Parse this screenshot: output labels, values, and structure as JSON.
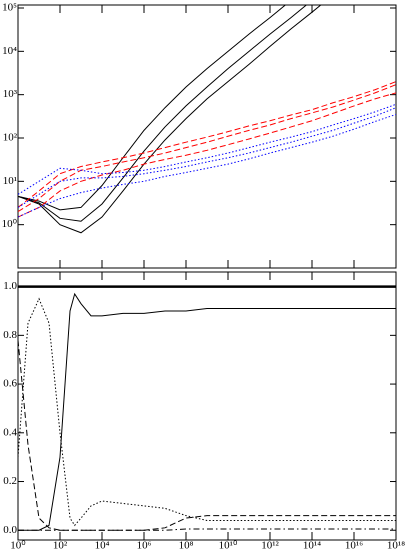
{
  "chart_data": [
    {
      "type": "line",
      "xscale": "log",
      "yscale": "log",
      "x": [
        1,
        10,
        100,
        1000,
        10000,
        100000,
        1000000,
        10000000,
        100000000,
        1000000000,
        10000000000,
        100000000000,
        1000000000000,
        10000000000000,
        100000000000000,
        1000000000000000,
        10000000000000000,
        100000000000000000,
        1000000000000000000
      ],
      "xlim": [
        1,
        1000000000000000000
      ],
      "ylim": [
        0.1,
        100000
      ],
      "yticks": [
        {
          "value": 1,
          "label": "10⁰"
        },
        {
          "value": 10,
          "label": "10¹"
        },
        {
          "value": 100,
          "label": "10²"
        },
        {
          "value": 1000,
          "label": "10³"
        },
        {
          "value": 10000,
          "label": "10⁴"
        },
        {
          "value": 100000,
          "label": "10⁵"
        }
      ],
      "series": [
        {
          "color": "#000000",
          "dash": "solid",
          "values": [
            4.5,
            3.5,
            2.2,
            2.5,
            8,
            35,
            150,
            500,
            1500,
            4000,
            10000,
            25000,
            60000,
            150000,
            null,
            null,
            null,
            null,
            null
          ]
        },
        {
          "color": "#000000",
          "dash": "solid",
          "values": [
            4.5,
            3.2,
            1.4,
            1.2,
            3,
            12,
            50,
            180,
            550,
            1500,
            4000,
            10000,
            25000,
            60000,
            150000,
            null,
            null,
            null,
            null
          ]
        },
        {
          "color": "#000000",
          "dash": "solid",
          "values": [
            4.5,
            3,
            1,
            0.65,
            1.5,
            6,
            25,
            90,
            280,
            800,
            2000,
            5000,
            13000,
            33000,
            80000,
            200000,
            null,
            null,
            null
          ]
        },
        {
          "color": "#ff0000",
          "dash": "dashed",
          "values": [
            2.5,
            6,
            15,
            22,
            28,
            35,
            45,
            60,
            80,
            105,
            140,
            190,
            250,
            340,
            450,
            650,
            900,
            1300,
            2000
          ]
        },
        {
          "color": "#ff0000",
          "dash": "dashed",
          "values": [
            2,
            4,
            10,
            18,
            22,
            28,
            35,
            45,
            60,
            80,
            110,
            150,
            200,
            280,
            380,
            520,
            750,
            1100,
            1700
          ]
        },
        {
          "color": "#ff0000",
          "dash": "dashed",
          "values": [
            1.5,
            2.5,
            6,
            10,
            14,
            18,
            25,
            32,
            40,
            52,
            70,
            95,
            130,
            180,
            250,
            370,
            550,
            800,
            1100
          ]
        },
        {
          "color": "#0000ff",
          "dash": "dotted",
          "values": [
            5,
            10,
            20,
            18,
            15,
            16,
            18,
            22,
            28,
            35,
            45,
            60,
            80,
            105,
            140,
            200,
            280,
            400,
            600
          ]
        },
        {
          "color": "#0000ff",
          "dash": "dotted",
          "values": [
            2.5,
            5,
            10,
            12,
            12,
            13,
            15,
            18,
            22,
            28,
            35,
            45,
            60,
            80,
            110,
            150,
            220,
            320,
            500
          ]
        },
        {
          "color": "#0000ff",
          "dash": "dotted",
          "values": [
            1.5,
            2.5,
            4,
            5.5,
            7,
            8.5,
            10,
            13,
            16,
            20,
            25,
            33,
            45,
            60,
            80,
            110,
            160,
            240,
            350
          ]
        }
      ]
    },
    {
      "type": "line",
      "xscale": "log",
      "yscale": "linear",
      "x": [
        1,
        3,
        10,
        30,
        100,
        300,
        500,
        1000,
        3000,
        10000,
        100000,
        1000000,
        10000000,
        100000000,
        1000000000,
        10000000000,
        1000000000000,
        100000000000000,
        10000000000000000,
        1000000000000000000
      ],
      "xlim": [
        1,
        1000000000000000000
      ],
      "ylim": [
        -0.04,
        1.06
      ],
      "xticks": [
        {
          "value": 1,
          "label": "10⁰"
        },
        {
          "value": 100,
          "label": "10²"
        },
        {
          "value": 10000,
          "label": "10⁴"
        },
        {
          "value": 1000000,
          "label": "10⁶"
        },
        {
          "value": 100000000,
          "label": "10⁸"
        },
        {
          "value": 10000000000,
          "label": "10¹⁰"
        },
        {
          "value": 1000000000000,
          "label": "10¹²"
        },
        {
          "value": 100000000000000,
          "label": "10¹⁴"
        },
        {
          "value": 10000000000000000,
          "label": "10¹⁶"
        },
        {
          "value": 1000000000000000000,
          "label": "10¹⁸"
        }
      ],
      "yticks": [
        {
          "value": 0,
          "label": "0.0"
        },
        {
          "value": 0.2,
          "label": "0.2"
        },
        {
          "value": 0.4,
          "label": "0.4"
        },
        {
          "value": 0.6,
          "label": "0.6"
        },
        {
          "value": 0.8,
          "label": "0.8"
        },
        {
          "value": 1,
          "label": "1.0"
        }
      ],
      "series": [
        {
          "color": "#000000",
          "dash": "thick",
          "values": [
            1,
            1,
            1,
            1,
            1,
            1,
            1,
            1,
            1,
            1,
            1,
            1,
            1,
            1,
            1,
            1,
            1,
            1,
            1,
            1
          ]
        },
        {
          "color": "#000000",
          "dash": "solid",
          "values": [
            0,
            0,
            0,
            0.02,
            0.3,
            0.9,
            0.97,
            0.93,
            0.88,
            0.88,
            0.89,
            0.89,
            0.9,
            0.9,
            0.91,
            0.91,
            0.91,
            0.91,
            0.91,
            0.91
          ]
        },
        {
          "color": "#000000",
          "dash": "dotted",
          "values": [
            0.3,
            0.85,
            0.95,
            0.85,
            0.4,
            0.05,
            0.02,
            0.05,
            0.1,
            0.12,
            0.11,
            0.1,
            0.09,
            0.06,
            0.04,
            0.04,
            0.04,
            0.04,
            0.04,
            0.04
          ]
        },
        {
          "color": "#000000",
          "dash": "dashed",
          "values": [
            0.78,
            0.35,
            0.05,
            0.01,
            0,
            0,
            0,
            0,
            0,
            0,
            0,
            0,
            0.01,
            0.05,
            0.06,
            0.06,
            0.06,
            0.06,
            0.06,
            0.06
          ]
        },
        {
          "color": "#000000",
          "dash": "dashdot",
          "values": [
            0,
            0,
            0,
            0,
            0,
            0,
            0,
            0,
            0,
            0,
            0,
            0,
            0,
            0.005,
            0.005,
            0.005,
            0.005,
            0.005,
            0.005,
            0.005
          ]
        }
      ]
    }
  ]
}
